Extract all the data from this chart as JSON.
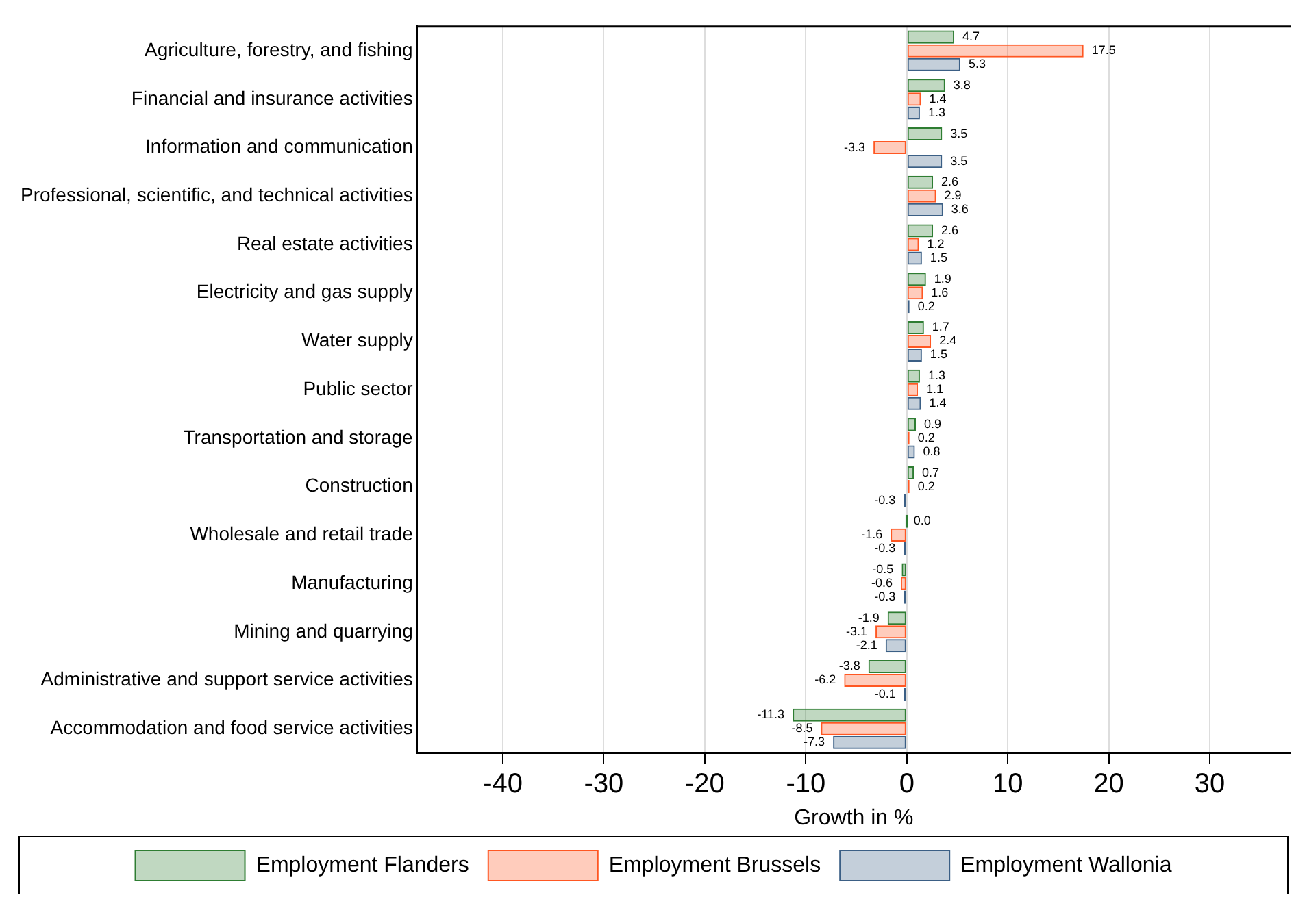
{
  "chart_data": {
    "type": "bar",
    "orientation": "horizontal",
    "xlabel": "Growth in %",
    "categories": [
      "Agriculture, forestry, and fishing",
      "Financial and insurance activities",
      "Information and communication",
      "Professional, scientific, and technical activities",
      "Real estate activities",
      "Electricity and gas supply",
      "Water supply",
      "Public sector",
      "Transportation and storage",
      "Construction",
      "Wholesale and retail trade",
      "Manufacturing",
      "Mining and quarrying",
      "Administrative and support service activities",
      "Accommodation and food service activities"
    ],
    "series": [
      {
        "name": "Employment Flanders",
        "color": "#2e7d32",
        "values": [
          4.7,
          3.8,
          3.5,
          2.6,
          2.6,
          1.9,
          1.7,
          1.3,
          0.9,
          0.7,
          0,
          -0.5,
          -1.9,
          -3.8,
          -11.3
        ],
        "value_labels": [
          "4.7",
          "3.8",
          "3.5",
          "2.6",
          "2.6",
          "1.9",
          "1.7",
          "1.3",
          "0.9",
          "0.7",
          "0.0",
          "-0.5",
          "-1.9",
          "-3.8",
          "-11.3"
        ]
      },
      {
        "name": "Employment Brussels",
        "color": "#ff5722",
        "values": [
          17.5,
          1.4,
          -3.3,
          2.9,
          1.2,
          1.6,
          2.4,
          1.1,
          0.2,
          0.2,
          -1.6,
          -0.6,
          -3.1,
          -6.2,
          -8.5
        ],
        "value_labels": [
          "17.5",
          "1.4",
          "-3.3",
          "2.9",
          "1.2",
          "1.6",
          "2.4",
          "1.1",
          "0.2",
          "0.2",
          "-1.6",
          "-0.6",
          "-3.1",
          "-6.2",
          "-8.5"
        ]
      },
      {
        "name": "Employment Wallonia",
        "color": "#3b5f85",
        "values": [
          5.3,
          1.3,
          3.5,
          3.6,
          1.5,
          0.2,
          1.5,
          1.4,
          0.8,
          -0.3,
          -0.3,
          -0.3,
          -2.1,
          -0.1,
          -7.3
        ],
        "value_labels": [
          "5.3",
          "1.3",
          "3.5",
          "3.6",
          "1.5",
          "0.2",
          "1.5",
          "1.4",
          "0.8",
          "-0.3",
          "-0.3",
          "-0.3",
          "-2.1",
          "-0.1",
          "-7.3"
        ]
      }
    ],
    "xlim": [
      -48.5,
      38
    ],
    "xticks": [
      -40,
      -30,
      -20,
      -10,
      0,
      10,
      20,
      30
    ],
    "grid": "x",
    "legend": "bottom"
  }
}
